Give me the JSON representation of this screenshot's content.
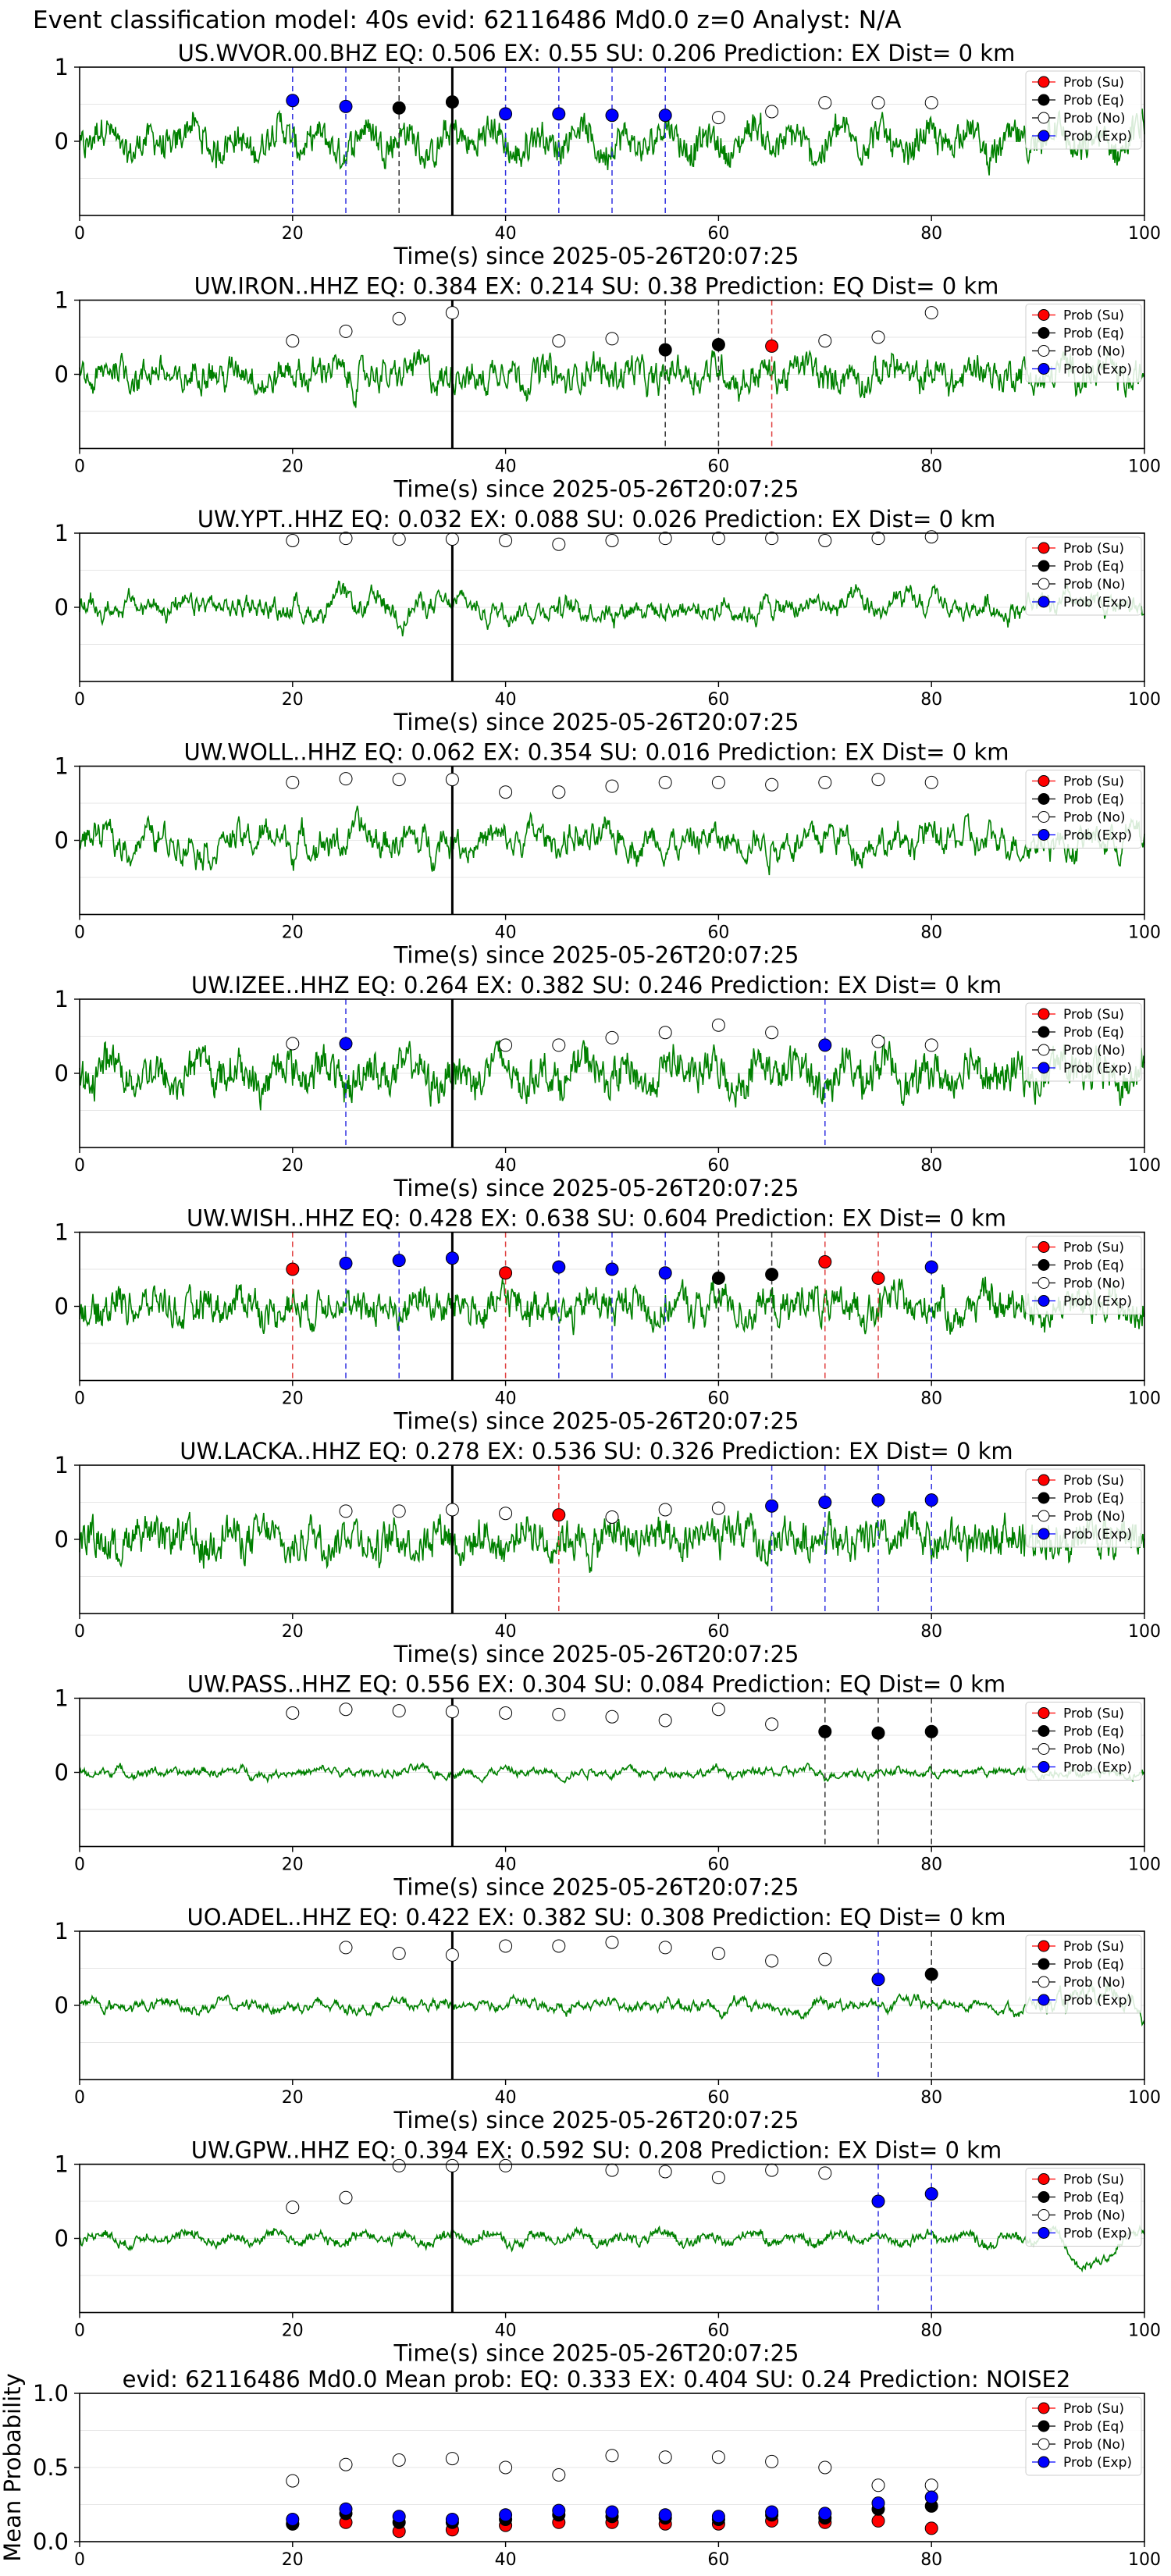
{
  "figure_title": "Event classification model: 40s evid: 62116486 Md0.0 z=0 Analyst: N/A",
  "legend": [
    "Prob (Su)",
    "Prob (Eq)",
    "Prob (No)",
    "Prob (Exp)"
  ],
  "colors": {
    "waveform": "#008000",
    "su": "#ff0000",
    "eq": "#000000",
    "no": "#ffffff",
    "exp": "#0000ff",
    "event_line": "#000000"
  },
  "chart_data": [
    {
      "type": "line",
      "station": "US.WVOR.00.BHZ",
      "title": "US.WVOR.00.BHZ   EQ: 0.506  EX: 0.55  SU: 0.206   Prediction: EX    Dist= 0 km",
      "xlabel": "Time(s) since 2025-05-26T20:07:25",
      "xlim": [
        0,
        100
      ],
      "ylim": [
        -1,
        1
      ],
      "xticks": [
        0,
        20,
        40,
        60,
        80,
        100
      ],
      "yticks": [
        0,
        1
      ],
      "event_time": 35,
      "markers": [
        {
          "t": 20,
          "cls": "exp",
          "p": 0.55
        },
        {
          "t": 25,
          "cls": "exp",
          "p": 0.47
        },
        {
          "t": 30,
          "cls": "eq",
          "p": 0.45
        },
        {
          "t": 35,
          "cls": "eq",
          "p": 0.53
        },
        {
          "t": 40,
          "cls": "exp",
          "p": 0.37
        },
        {
          "t": 45,
          "cls": "exp",
          "p": 0.37
        },
        {
          "t": 50,
          "cls": "exp",
          "p": 0.35
        },
        {
          "t": 55,
          "cls": "exp",
          "p": 0.35
        },
        {
          "t": 60,
          "cls": "no",
          "p": 0.32
        },
        {
          "t": 65,
          "cls": "no",
          "p": 0.4
        },
        {
          "t": 70,
          "cls": "no",
          "p": 0.52
        },
        {
          "t": 75,
          "cls": "no",
          "p": 0.52
        },
        {
          "t": 80,
          "cls": "no",
          "p": 0.52
        }
      ]
    },
    {
      "type": "line",
      "station": "UW.IRON..HHZ",
      "title": "UW.IRON..HHZ   EQ: 0.384  EX: 0.214  SU: 0.38   Prediction: EQ    Dist= 0 km",
      "xlabel": "Time(s) since 2025-05-26T20:07:25",
      "xlim": [
        0,
        100
      ],
      "ylim": [
        -1,
        1
      ],
      "xticks": [
        0,
        20,
        40,
        60,
        80,
        100
      ],
      "yticks": [
        0,
        1
      ],
      "event_time": 35,
      "markers": [
        {
          "t": 20,
          "cls": "no",
          "p": 0.45
        },
        {
          "t": 25,
          "cls": "no",
          "p": 0.58
        },
        {
          "t": 30,
          "cls": "no",
          "p": 0.75
        },
        {
          "t": 35,
          "cls": "no",
          "p": 0.83
        },
        {
          "t": 45,
          "cls": "no",
          "p": 0.45
        },
        {
          "t": 50,
          "cls": "no",
          "p": 0.48
        },
        {
          "t": 55,
          "cls": "eq",
          "p": 0.33
        },
        {
          "t": 60,
          "cls": "eq",
          "p": 0.4
        },
        {
          "t": 65,
          "cls": "su",
          "p": 0.38
        },
        {
          "t": 70,
          "cls": "no",
          "p": 0.45
        },
        {
          "t": 75,
          "cls": "no",
          "p": 0.5
        },
        {
          "t": 80,
          "cls": "no",
          "p": 0.83
        }
      ]
    },
    {
      "type": "line",
      "station": "UW.YPT..HHZ",
      "title": "UW.YPT..HHZ   EQ: 0.032  EX: 0.088  SU: 0.026   Prediction: EX    Dist= 0 km",
      "xlabel": "Time(s) since 2025-05-26T20:07:25",
      "xlim": [
        0,
        100
      ],
      "ylim": [
        -1,
        1
      ],
      "xticks": [
        0,
        20,
        40,
        60,
        80,
        100
      ],
      "yticks": [
        0,
        1
      ],
      "event_time": 35,
      "markers": [
        {
          "t": 20,
          "cls": "no",
          "p": 0.9
        },
        {
          "t": 25,
          "cls": "no",
          "p": 0.93
        },
        {
          "t": 30,
          "cls": "no",
          "p": 0.92
        },
        {
          "t": 35,
          "cls": "no",
          "p": 0.92
        },
        {
          "t": 40,
          "cls": "no",
          "p": 0.9
        },
        {
          "t": 45,
          "cls": "no",
          "p": 0.85
        },
        {
          "t": 50,
          "cls": "no",
          "p": 0.9
        },
        {
          "t": 55,
          "cls": "no",
          "p": 0.93
        },
        {
          "t": 60,
          "cls": "no",
          "p": 0.93
        },
        {
          "t": 65,
          "cls": "no",
          "p": 0.93
        },
        {
          "t": 70,
          "cls": "no",
          "p": 0.9
        },
        {
          "t": 75,
          "cls": "no",
          "p": 0.93
        },
        {
          "t": 80,
          "cls": "no",
          "p": 0.95
        }
      ]
    },
    {
      "type": "line",
      "station": "UW.WOLL..HHZ",
      "title": "UW.WOLL..HHZ   EQ: 0.062  EX: 0.354  SU: 0.016   Prediction: EX    Dist= 0 km",
      "xlabel": "Time(s) since 2025-05-26T20:07:25",
      "xlim": [
        0,
        100
      ],
      "ylim": [
        -1,
        1
      ],
      "xticks": [
        0,
        20,
        40,
        60,
        80,
        100
      ],
      "yticks": [
        0,
        1
      ],
      "event_time": 35,
      "markers": [
        {
          "t": 20,
          "cls": "no",
          "p": 0.78
        },
        {
          "t": 25,
          "cls": "no",
          "p": 0.83
        },
        {
          "t": 30,
          "cls": "no",
          "p": 0.82
        },
        {
          "t": 35,
          "cls": "no",
          "p": 0.82
        },
        {
          "t": 40,
          "cls": "no",
          "p": 0.65
        },
        {
          "t": 45,
          "cls": "no",
          "p": 0.65
        },
        {
          "t": 50,
          "cls": "no",
          "p": 0.73
        },
        {
          "t": 55,
          "cls": "no",
          "p": 0.78
        },
        {
          "t": 60,
          "cls": "no",
          "p": 0.78
        },
        {
          "t": 65,
          "cls": "no",
          "p": 0.75
        },
        {
          "t": 70,
          "cls": "no",
          "p": 0.78
        },
        {
          "t": 75,
          "cls": "no",
          "p": 0.82
        },
        {
          "t": 80,
          "cls": "no",
          "p": 0.78
        }
      ]
    },
    {
      "type": "line",
      "station": "UW.IZEE..HHZ",
      "title": "UW.IZEE..HHZ   EQ: 0.264  EX: 0.382  SU: 0.246   Prediction: EX    Dist= 0 km",
      "xlabel": "Time(s) since 2025-05-26T20:07:25",
      "xlim": [
        0,
        100
      ],
      "ylim": [
        -1,
        1
      ],
      "xticks": [
        0,
        20,
        40,
        60,
        80,
        100
      ],
      "yticks": [
        0,
        1
      ],
      "event_time": 35,
      "markers": [
        {
          "t": 20,
          "cls": "no",
          "p": 0.4
        },
        {
          "t": 25,
          "cls": "exp",
          "p": 0.4
        },
        {
          "t": 40,
          "cls": "no",
          "p": 0.38
        },
        {
          "t": 45,
          "cls": "no",
          "p": 0.38
        },
        {
          "t": 50,
          "cls": "no",
          "p": 0.48
        },
        {
          "t": 55,
          "cls": "no",
          "p": 0.55
        },
        {
          "t": 60,
          "cls": "no",
          "p": 0.65
        },
        {
          "t": 65,
          "cls": "no",
          "p": 0.55
        },
        {
          "t": 70,
          "cls": "exp",
          "p": 0.38
        },
        {
          "t": 75,
          "cls": "no",
          "p": 0.43
        },
        {
          "t": 80,
          "cls": "no",
          "p": 0.38
        }
      ]
    },
    {
      "type": "line",
      "station": "UW.WISH..HHZ",
      "title": "UW.WISH..HHZ   EQ: 0.428  EX: 0.638  SU: 0.604   Prediction: EX    Dist= 0 km",
      "xlabel": "Time(s) since 2025-05-26T20:07:25",
      "xlim": [
        0,
        100
      ],
      "ylim": [
        -1,
        1
      ],
      "xticks": [
        0,
        20,
        40,
        60,
        80,
        100
      ],
      "yticks": [
        0,
        1
      ],
      "event_time": 35,
      "markers": [
        {
          "t": 20,
          "cls": "su",
          "p": 0.5
        },
        {
          "t": 25,
          "cls": "exp",
          "p": 0.58
        },
        {
          "t": 30,
          "cls": "exp",
          "p": 0.62
        },
        {
          "t": 35,
          "cls": "exp",
          "p": 0.65
        },
        {
          "t": 40,
          "cls": "su",
          "p": 0.45
        },
        {
          "t": 45,
          "cls": "exp",
          "p": 0.53
        },
        {
          "t": 50,
          "cls": "exp",
          "p": 0.5
        },
        {
          "t": 55,
          "cls": "exp",
          "p": 0.45
        },
        {
          "t": 60,
          "cls": "eq",
          "p": 0.38
        },
        {
          "t": 65,
          "cls": "eq",
          "p": 0.43
        },
        {
          "t": 70,
          "cls": "su",
          "p": 0.6
        },
        {
          "t": 75,
          "cls": "su",
          "p": 0.38
        },
        {
          "t": 80,
          "cls": "exp",
          "p": 0.53
        }
      ]
    },
    {
      "type": "line",
      "station": "UW.LACKA..HHZ",
      "title": "UW.LACKA..HHZ   EQ: 0.278  EX: 0.536  SU: 0.326   Prediction: EX    Dist= 0 km",
      "xlabel": "Time(s) since 2025-05-26T20:07:25",
      "xlim": [
        0,
        100
      ],
      "ylim": [
        -1,
        1
      ],
      "xticks": [
        0,
        20,
        40,
        60,
        80,
        100
      ],
      "yticks": [
        0,
        1
      ],
      "event_time": 35,
      "markers": [
        {
          "t": 25,
          "cls": "no",
          "p": 0.38
        },
        {
          "t": 30,
          "cls": "no",
          "p": 0.38
        },
        {
          "t": 35,
          "cls": "no",
          "p": 0.4
        },
        {
          "t": 40,
          "cls": "no",
          "p": 0.35
        },
        {
          "t": 45,
          "cls": "su",
          "p": 0.33
        },
        {
          "t": 50,
          "cls": "no",
          "p": 0.3
        },
        {
          "t": 55,
          "cls": "no",
          "p": 0.4
        },
        {
          "t": 60,
          "cls": "no",
          "p": 0.42
        },
        {
          "t": 65,
          "cls": "exp",
          "p": 0.45
        },
        {
          "t": 70,
          "cls": "exp",
          "p": 0.5
        },
        {
          "t": 75,
          "cls": "exp",
          "p": 0.53
        },
        {
          "t": 80,
          "cls": "exp",
          "p": 0.53
        }
      ]
    },
    {
      "type": "line",
      "station": "UW.PASS..HHZ",
      "title": "UW.PASS..HHZ   EQ: 0.556  EX: 0.304  SU: 0.084   Prediction: EQ    Dist= 0 km",
      "xlabel": "Time(s) since 2025-05-26T20:07:25",
      "xlim": [
        0,
        100
      ],
      "ylim": [
        -1,
        1
      ],
      "xticks": [
        0,
        20,
        40,
        60,
        80,
        100
      ],
      "yticks": [
        0,
        1
      ],
      "event_time": 35,
      "markers": [
        {
          "t": 20,
          "cls": "no",
          "p": 0.8
        },
        {
          "t": 25,
          "cls": "no",
          "p": 0.85
        },
        {
          "t": 30,
          "cls": "no",
          "p": 0.83
        },
        {
          "t": 35,
          "cls": "no",
          "p": 0.82
        },
        {
          "t": 40,
          "cls": "no",
          "p": 0.8
        },
        {
          "t": 45,
          "cls": "no",
          "p": 0.78
        },
        {
          "t": 50,
          "cls": "no",
          "p": 0.75
        },
        {
          "t": 55,
          "cls": "no",
          "p": 0.7
        },
        {
          "t": 60,
          "cls": "no",
          "p": 0.85
        },
        {
          "t": 65,
          "cls": "no",
          "p": 0.65
        },
        {
          "t": 70,
          "cls": "eq",
          "p": 0.55
        },
        {
          "t": 75,
          "cls": "eq",
          "p": 0.53
        },
        {
          "t": 80,
          "cls": "eq",
          "p": 0.55
        }
      ]
    },
    {
      "type": "line",
      "station": "UO.ADEL..HHZ",
      "title": "UO.ADEL..HHZ   EQ: 0.422  EX: 0.382  SU: 0.308   Prediction: EQ    Dist= 0 km",
      "xlabel": "Time(s) since 2025-05-26T20:07:25",
      "xlim": [
        0,
        100
      ],
      "ylim": [
        -1,
        1
      ],
      "xticks": [
        0,
        20,
        40,
        60,
        80,
        100
      ],
      "yticks": [
        0,
        1
      ],
      "event_time": 35,
      "markers": [
        {
          "t": 25,
          "cls": "no",
          "p": 0.78
        },
        {
          "t": 30,
          "cls": "no",
          "p": 0.7
        },
        {
          "t": 35,
          "cls": "no",
          "p": 0.68
        },
        {
          "t": 40,
          "cls": "no",
          "p": 0.8
        },
        {
          "t": 45,
          "cls": "no",
          "p": 0.8
        },
        {
          "t": 50,
          "cls": "no",
          "p": 0.85
        },
        {
          "t": 55,
          "cls": "no",
          "p": 0.78
        },
        {
          "t": 60,
          "cls": "no",
          "p": 0.7
        },
        {
          "t": 65,
          "cls": "no",
          "p": 0.6
        },
        {
          "t": 70,
          "cls": "no",
          "p": 0.62
        },
        {
          "t": 75,
          "cls": "exp",
          "p": 0.35
        },
        {
          "t": 80,
          "cls": "eq",
          "p": 0.42
        }
      ]
    },
    {
      "type": "line",
      "station": "UW.GPW..HHZ",
      "title": "UW.GPW..HHZ   EQ: 0.394  EX: 0.592  SU: 0.208   Prediction: EX    Dist= 0 km",
      "xlabel": "Time(s) since 2025-05-26T20:07:25",
      "xlim": [
        0,
        100
      ],
      "ylim": [
        -1,
        1
      ],
      "xticks": [
        0,
        20,
        40,
        60,
        80,
        100
      ],
      "yticks": [
        0,
        1
      ],
      "event_time": 35,
      "markers": [
        {
          "t": 20,
          "cls": "no",
          "p": 0.42
        },
        {
          "t": 25,
          "cls": "no",
          "p": 0.55
        },
        {
          "t": 30,
          "cls": "no",
          "p": 0.98
        },
        {
          "t": 35,
          "cls": "no",
          "p": 0.98
        },
        {
          "t": 40,
          "cls": "no",
          "p": 0.98
        },
        {
          "t": 50,
          "cls": "no",
          "p": 0.92
        },
        {
          "t": 55,
          "cls": "no",
          "p": 0.9
        },
        {
          "t": 60,
          "cls": "no",
          "p": 0.82
        },
        {
          "t": 65,
          "cls": "no",
          "p": 0.92
        },
        {
          "t": 70,
          "cls": "no",
          "p": 0.88
        },
        {
          "t": 75,
          "cls": "exp",
          "p": 0.5
        },
        {
          "t": 80,
          "cls": "exp",
          "p": 0.6
        }
      ]
    },
    {
      "type": "scatter",
      "title": "evid: 62116486  Md0.0   Mean prob:   EQ: 0.333  EX: 0.404  SU: 0.24   Prediction: NOISE2",
      "ylabel": "Mean Probability",
      "xlim": [
        0,
        100
      ],
      "ylim": [
        0,
        1
      ],
      "xticks": [
        0,
        20,
        40,
        60,
        80,
        100
      ],
      "yticks": [
        0.0,
        0.5,
        1.0
      ],
      "x": [
        20,
        25,
        30,
        35,
        40,
        45,
        50,
        55,
        60,
        65,
        70,
        75,
        80
      ],
      "series": [
        {
          "name": "Prob (Su)",
          "cls": "su",
          "values": [
            0.12,
            0.13,
            0.07,
            0.08,
            0.11,
            0.13,
            0.13,
            0.12,
            0.12,
            0.14,
            0.13,
            0.14,
            0.09
          ]
        },
        {
          "name": "Prob (Eq)",
          "cls": "eq",
          "values": [
            0.12,
            0.19,
            0.13,
            0.13,
            0.15,
            0.18,
            0.17,
            0.16,
            0.15,
            0.18,
            0.16,
            0.22,
            0.24
          ]
        },
        {
          "name": "Prob (No)",
          "cls": "no",
          "values": [
            0.41,
            0.52,
            0.55,
            0.56,
            0.5,
            0.45,
            0.58,
            0.57,
            0.57,
            0.54,
            0.5,
            0.38,
            0.38
          ]
        },
        {
          "name": "Prob (Exp)",
          "cls": "exp",
          "values": [
            0.15,
            0.22,
            0.17,
            0.15,
            0.18,
            0.21,
            0.2,
            0.18,
            0.17,
            0.2,
            0.19,
            0.26,
            0.3
          ]
        }
      ]
    }
  ]
}
